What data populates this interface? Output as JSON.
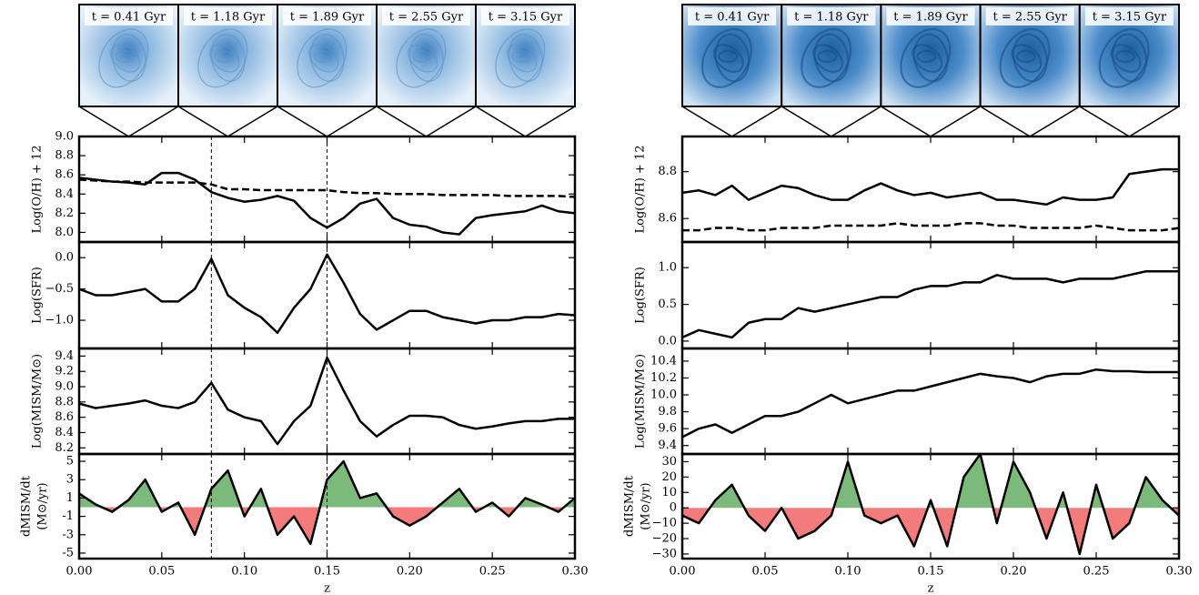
{
  "snapshots": {
    "left": [
      "t = 0.41 Gyr",
      "t = 1.18 Gyr",
      "t = 1.89 Gyr",
      "t = 2.55 Gyr",
      "t = 3.15 Gyr"
    ],
    "right": [
      "t = 0.41 Gyr",
      "t = 1.18 Gyr",
      "t = 1.89 Gyr",
      "t = 2.55 Gyr",
      "t = 3.15 Gyr"
    ]
  },
  "chart_data": [
    {
      "type": "line",
      "ylabel": "Log(O/H) + 12",
      "x": [
        0,
        0.01,
        0.02,
        0.03,
        0.04,
        0.05,
        0.06,
        0.07,
        0.08,
        0.09,
        0.1,
        0.11,
        0.12,
        0.13,
        0.14,
        0.15,
        0.16,
        0.17,
        0.18,
        0.19,
        0.2,
        0.21,
        0.22,
        0.23,
        0.24,
        0.25,
        0.26,
        0.27,
        0.28,
        0.29,
        0.3
      ],
      "series": [
        {
          "color": "#000000",
          "values": [
            8.57,
            8.55,
            8.53,
            8.52,
            8.5,
            8.62,
            8.62,
            8.55,
            8.42,
            8.36,
            8.32,
            8.34,
            8.38,
            8.33,
            8.15,
            8.05,
            8.15,
            8.3,
            8.35,
            8.15,
            8.08,
            8.06,
            8.0,
            7.98,
            8.15,
            8.18,
            8.2,
            8.22,
            8.28,
            8.22,
            8.2
          ]
        },
        {
          "color": "#000000",
          "dash": true,
          "values": [
            8.55,
            8.54,
            8.53,
            8.53,
            8.52,
            8.52,
            8.52,
            8.52,
            8.5,
            8.45,
            8.45,
            8.44,
            8.44,
            8.44,
            8.44,
            8.44,
            8.42,
            8.41,
            8.41,
            8.4,
            8.4,
            8.4,
            8.39,
            8.39,
            8.39,
            8.39,
            8.38,
            8.38,
            8.38,
            8.38,
            8.37
          ]
        }
      ],
      "xlim": [
        0,
        0.3
      ],
      "xticks": [
        0,
        0.05,
        0.1,
        0.15,
        0.2,
        0.25,
        0.3
      ],
      "ylim": [
        7.9,
        9.0
      ],
      "yticks": [
        {
          "value": 8.0,
          "label": "8.0"
        },
        8.2,
        8.4,
        8.6,
        8.8,
        {
          "value": 9.0,
          "label": "9.0"
        }
      ],
      "vlines": [
        0.08,
        0.15
      ]
    },
    {
      "type": "line",
      "ylabel": "Log(SFR)",
      "x": [
        0,
        0.01,
        0.02,
        0.03,
        0.04,
        0.05,
        0.06,
        0.07,
        0.08,
        0.09,
        0.1,
        0.11,
        0.12,
        0.13,
        0.14,
        0.15,
        0.16,
        0.17,
        0.18,
        0.19,
        0.2,
        0.21,
        0.22,
        0.23,
        0.24,
        0.25,
        0.26,
        0.27,
        0.28,
        0.29,
        0.3
      ],
      "series": [
        {
          "color": "#000000",
          "values": [
            -0.5,
            -0.6,
            -0.6,
            -0.55,
            -0.5,
            -0.7,
            -0.7,
            -0.5,
            -0.02,
            -0.6,
            -0.8,
            -0.95,
            -1.2,
            -0.8,
            -0.5,
            0.05,
            -0.4,
            -0.9,
            -1.15,
            -1.0,
            -0.85,
            -0.85,
            -0.95,
            -1.0,
            -1.05,
            -1.0,
            -1.0,
            -0.95,
            -0.95,
            -0.9,
            -0.92
          ]
        }
      ],
      "xlim": [
        0,
        0.3
      ],
      "xticks": [
        0,
        0.05,
        0.1,
        0.15,
        0.2,
        0.25,
        0.3
      ],
      "ylim": [
        -1.45,
        0.25
      ],
      "yticks": [
        {
          "value": -1.0,
          "label": "−1.0"
        },
        {
          "value": -0.5,
          "label": "−0.5"
        },
        {
          "value": 0.0,
          "label": "0.0"
        }
      ],
      "vlines": [
        0.08,
        0.15
      ]
    },
    {
      "type": "line",
      "ylabel": "Log(MISM/M⊙)",
      "x": [
        0,
        0.01,
        0.02,
        0.03,
        0.04,
        0.05,
        0.06,
        0.07,
        0.08,
        0.09,
        0.1,
        0.11,
        0.12,
        0.13,
        0.14,
        0.15,
        0.16,
        0.17,
        0.18,
        0.19,
        0.2,
        0.21,
        0.22,
        0.23,
        0.24,
        0.25,
        0.26,
        0.27,
        0.28,
        0.29,
        0.3
      ],
      "series": [
        {
          "color": "#000000",
          "values": [
            8.78,
            8.72,
            8.75,
            8.78,
            8.82,
            8.75,
            8.72,
            8.8,
            9.05,
            8.7,
            8.6,
            8.55,
            8.25,
            8.55,
            8.75,
            9.38,
            8.95,
            8.55,
            8.35,
            8.5,
            8.62,
            8.62,
            8.6,
            8.5,
            8.45,
            8.48,
            8.52,
            8.55,
            8.55,
            8.58,
            8.58
          ]
        }
      ],
      "xlim": [
        0,
        0.3
      ],
      "xticks": [
        0,
        0.05,
        0.1,
        0.15,
        0.2,
        0.25,
        0.3
      ],
      "ylim": [
        8.12,
        9.5
      ],
      "yticks": [
        8.2,
        8.4,
        8.6,
        8.8,
        {
          "value": 9.0,
          "label": "9.0"
        },
        9.2,
        9.4
      ],
      "vlines": [
        0.08,
        0.15
      ]
    },
    {
      "type": "area",
      "ylabel": [
        "dMISM/dt",
        "(M⊙/yr)"
      ],
      "xlabel": "z",
      "x": [
        0,
        0.01,
        0.02,
        0.03,
        0.04,
        0.05,
        0.06,
        0.07,
        0.08,
        0.09,
        0.1,
        0.11,
        0.12,
        0.13,
        0.14,
        0.15,
        0.16,
        0.17,
        0.18,
        0.19,
        0.2,
        0.21,
        0.22,
        0.23,
        0.24,
        0.25,
        0.26,
        0.27,
        0.28,
        0.29,
        0.3
      ],
      "series": [
        {
          "color": "#000000",
          "values": [
            1.5,
            0.3,
            -0.5,
            0.8,
            3,
            -0.5,
            0.5,
            -3,
            2,
            4,
            -1,
            2,
            -3,
            -1,
            -4,
            3,
            5,
            1,
            1.5,
            -1,
            -2,
            -1,
            0.5,
            2,
            -0.5,
            0.5,
            -1,
            1,
            0.3,
            -0.5,
            1
          ]
        }
      ],
      "fill": {
        "above": "#7cba7c",
        "below": "#f47b7b"
      },
      "xlim": [
        0,
        0.3
      ],
      "xticks": [
        {
          "value": 0,
          "label": "0.00"
        },
        0.05,
        {
          "value": 0.1,
          "label": "0.10"
        },
        0.15,
        {
          "value": 0.2,
          "label": "0.20"
        },
        0.25,
        {
          "value": 0.3,
          "label": "0.30"
        }
      ],
      "ylim": [
        -5.6,
        5.8
      ],
      "yticks": [
        -5,
        -3,
        -1,
        1,
        3,
        5
      ],
      "vlines": [
        0.08,
        0.15
      ]
    },
    {
      "type": "line",
      "ylabel": "Log(O/H) + 12",
      "x": [
        0,
        0.01,
        0.02,
        0.03,
        0.04,
        0.05,
        0.06,
        0.07,
        0.08,
        0.09,
        0.1,
        0.11,
        0.12,
        0.13,
        0.14,
        0.15,
        0.16,
        0.17,
        0.18,
        0.19,
        0.2,
        0.21,
        0.22,
        0.23,
        0.24,
        0.25,
        0.26,
        0.27,
        0.28,
        0.29,
        0.3
      ],
      "series": [
        {
          "color": "#000000",
          "values": [
            8.71,
            8.72,
            8.7,
            8.74,
            8.68,
            8.71,
            8.74,
            8.73,
            8.7,
            8.68,
            8.68,
            8.72,
            8.75,
            8.72,
            8.7,
            8.71,
            8.69,
            8.7,
            8.71,
            8.68,
            8.68,
            8.67,
            8.66,
            8.69,
            8.68,
            8.68,
            8.69,
            8.79,
            8.8,
            8.81,
            8.81
          ]
        },
        {
          "color": "#000000",
          "dash": true,
          "values": [
            8.55,
            8.55,
            8.56,
            8.56,
            8.55,
            8.55,
            8.56,
            8.56,
            8.56,
            8.57,
            8.57,
            8.57,
            8.57,
            8.58,
            8.57,
            8.57,
            8.57,
            8.58,
            8.58,
            8.57,
            8.57,
            8.56,
            8.56,
            8.56,
            8.56,
            8.57,
            8.56,
            8.55,
            8.55,
            8.55,
            8.56
          ]
        }
      ],
      "xlim": [
        0,
        0.3
      ],
      "xticks": [
        0,
        0.05,
        0.1,
        0.15,
        0.2,
        0.25,
        0.3
      ],
      "ylim": [
        8.5,
        8.95
      ],
      "yticks": [
        8.6,
        8.8
      ]
    },
    {
      "type": "line",
      "ylabel": "Log(SFR)",
      "x": [
        0,
        0.01,
        0.02,
        0.03,
        0.04,
        0.05,
        0.06,
        0.07,
        0.08,
        0.09,
        0.1,
        0.11,
        0.12,
        0.13,
        0.14,
        0.15,
        0.16,
        0.17,
        0.18,
        0.19,
        0.2,
        0.21,
        0.22,
        0.23,
        0.24,
        0.25,
        0.26,
        0.27,
        0.28,
        0.29,
        0.3
      ],
      "series": [
        {
          "color": "#000000",
          "values": [
            0.05,
            0.15,
            0.1,
            0.05,
            0.25,
            0.3,
            0.3,
            0.45,
            0.4,
            0.45,
            0.5,
            0.55,
            0.6,
            0.6,
            0.7,
            0.75,
            0.75,
            0.8,
            0.8,
            0.9,
            0.85,
            0.85,
            0.85,
            0.8,
            0.85,
            0.85,
            0.85,
            0.9,
            0.95,
            0.95,
            0.95
          ]
        }
      ],
      "xlim": [
        0,
        0.3
      ],
      "xticks": [
        0,
        0.05,
        0.1,
        0.15,
        0.2,
        0.25,
        0.3
      ],
      "ylim": [
        -0.1,
        1.35
      ],
      "yticks": [
        {
          "value": 0.0,
          "label": "0.0"
        },
        0.5,
        {
          "value": 1.0,
          "label": "1.0"
        }
      ]
    },
    {
      "type": "line",
      "ylabel": "Log(MISM/M⊙)",
      "x": [
        0,
        0.01,
        0.02,
        0.03,
        0.04,
        0.05,
        0.06,
        0.07,
        0.08,
        0.09,
        0.1,
        0.11,
        0.12,
        0.13,
        0.14,
        0.15,
        0.16,
        0.17,
        0.18,
        0.19,
        0.2,
        0.21,
        0.22,
        0.23,
        0.24,
        0.25,
        0.26,
        0.27,
        0.28,
        0.29,
        0.3
      ],
      "series": [
        {
          "color": "#000000",
          "values": [
            9.5,
            9.6,
            9.65,
            9.55,
            9.65,
            9.75,
            9.75,
            9.8,
            9.9,
            10.0,
            9.9,
            9.95,
            10.0,
            10.05,
            10.05,
            10.1,
            10.15,
            10.2,
            10.25,
            10.22,
            10.2,
            10.15,
            10.22,
            10.25,
            10.25,
            10.3,
            10.28,
            10.28,
            10.27,
            10.27,
            10.27
          ]
        }
      ],
      "xlim": [
        0,
        0.3
      ],
      "xticks": [
        0,
        0.05,
        0.1,
        0.15,
        0.2,
        0.25,
        0.3
      ],
      "ylim": [
        9.3,
        10.55
      ],
      "yticks": [
        9.4,
        9.6,
        9.8,
        {
          "value": 10.0,
          "label": "10.0"
        },
        10.2,
        10.4
      ]
    },
    {
      "type": "area",
      "ylabel": [
        "dMISM/dt",
        "(M⊙/yr)"
      ],
      "xlabel": "z",
      "x": [
        0,
        0.01,
        0.02,
        0.03,
        0.04,
        0.05,
        0.06,
        0.07,
        0.08,
        0.09,
        0.1,
        0.11,
        0.12,
        0.13,
        0.14,
        0.15,
        0.16,
        0.17,
        0.18,
        0.19,
        0.2,
        0.21,
        0.22,
        0.23,
        0.24,
        0.25,
        0.26,
        0.27,
        0.28,
        0.29,
        0.3
      ],
      "series": [
        {
          "color": "#000000",
          "values": [
            -5,
            -10,
            5,
            15,
            -5,
            -15,
            0,
            -20,
            -15,
            -5,
            30,
            -5,
            -10,
            -5,
            -25,
            5,
            -25,
            20,
            35,
            -10,
            30,
            10,
            -20,
            10,
            -30,
            15,
            -20,
            -10,
            20,
            5,
            -5
          ]
        }
      ],
      "fill": {
        "above": "#7cba7c",
        "below": "#f47b7b"
      },
      "xlim": [
        0,
        0.3
      ],
      "xticks": [
        {
          "value": 0,
          "label": "0.00"
        },
        0.05,
        {
          "value": 0.1,
          "label": "0.10"
        },
        0.15,
        {
          "value": 0.2,
          "label": "0.20"
        },
        0.25,
        {
          "value": 0.3,
          "label": "0.30"
        }
      ],
      "ylim": [
        -33,
        35
      ],
      "yticks": [
        {
          "value": -30,
          "label": "−30"
        },
        {
          "value": -20,
          "label": "−20"
        },
        {
          "value": -10,
          "label": "−10"
        },
        0,
        10,
        20,
        30
      ]
    }
  ]
}
